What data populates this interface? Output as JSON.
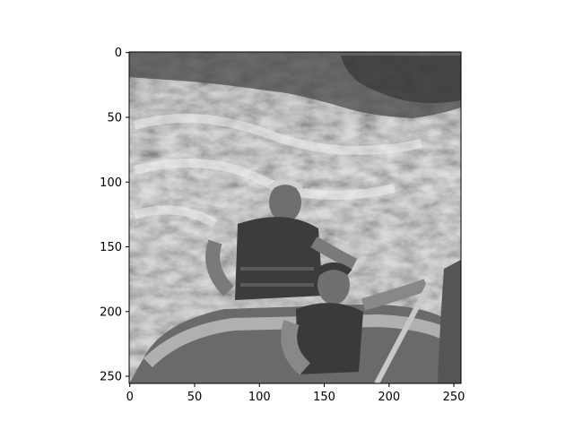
{
  "chart_data": {
    "type": "heatmap",
    "title": "",
    "xlabel": "",
    "ylabel": "",
    "colormap": "gray",
    "image_shape": [
      256,
      256
    ],
    "xlim": [
      -0.5,
      255.5
    ],
    "ylim": [
      255.5,
      -0.5
    ],
    "x_ticks": [
      0,
      50,
      100,
      150,
      200,
      250
    ],
    "y_ticks": [
      0,
      50,
      100,
      150,
      200,
      250
    ],
    "x_tick_labels": [
      "0",
      "50",
      "100",
      "150",
      "200",
      "250"
    ],
    "y_tick_labels": [
      "0",
      "50",
      "100",
      "150",
      "200",
      "250"
    ],
    "grid": false
  },
  "colors": {
    "background": "#ffffff",
    "axes_frame": "#000000",
    "water_light": "#d8d8d8",
    "water_mid": "#9a9a9a",
    "water_dark": "#4a4a4a",
    "rock_dark": "#3a3a3a"
  }
}
